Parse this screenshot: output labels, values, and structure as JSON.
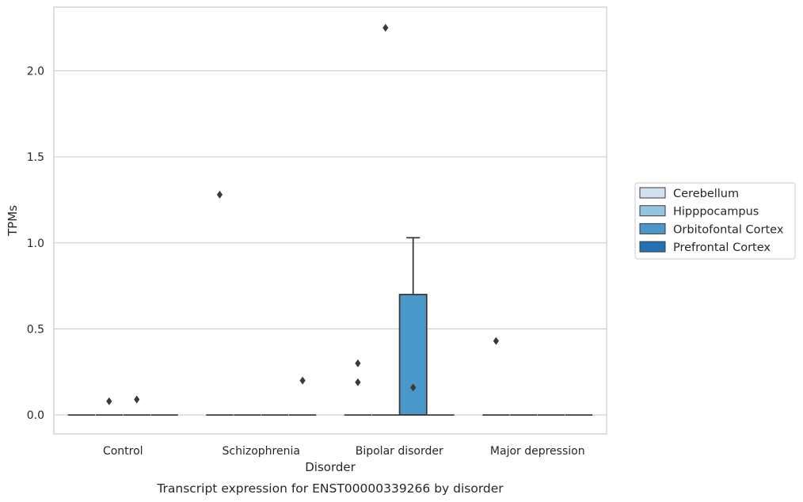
{
  "caption": "Transcript expression for ENST00000339266 by disorder",
  "chart_data": {
    "type": "box",
    "title": "",
    "xlabel": "Disorder",
    "ylabel": "TPMs",
    "ylim": [
      -0.11,
      2.37
    ],
    "yticks": [
      0.0,
      0.5,
      1.0,
      1.5,
      2.0
    ],
    "ytick_labels": [
      "0.0",
      "0.5",
      "1.0",
      "1.5",
      "2.0"
    ],
    "grid": "horizontal",
    "legend_position": "right",
    "categories": [
      "Control",
      "Schizophrenia",
      "Bipolar disorder",
      "Major depression"
    ],
    "series": [
      {
        "name": "Cerebellum",
        "color": "#d0e1f2",
        "boxes": [
          {
            "q1": 0,
            "median": 0,
            "q3": 0,
            "whislo": 0,
            "whishi": 0,
            "fliers": []
          },
          {
            "q1": 0,
            "median": 0,
            "q3": 0,
            "whislo": 0,
            "whishi": 0,
            "fliers": [
              1.28
            ]
          },
          {
            "q1": 0,
            "median": 0,
            "q3": 0,
            "whislo": 0,
            "whishi": 0,
            "fliers": [
              0.19,
              0.3
            ]
          },
          {
            "q1": 0,
            "median": 0,
            "q3": 0,
            "whislo": 0,
            "whishi": 0,
            "fliers": [
              0.43
            ]
          }
        ]
      },
      {
        "name": "Hipppocampus",
        "color": "#94c4df",
        "boxes": [
          {
            "q1": 0,
            "median": 0,
            "q3": 0,
            "whislo": 0,
            "whishi": 0,
            "fliers": [
              0.08
            ]
          },
          {
            "q1": 0,
            "median": 0,
            "q3": 0,
            "whislo": 0,
            "whishi": 0,
            "fliers": []
          },
          {
            "q1": 0,
            "median": 0,
            "q3": 0,
            "whislo": 0,
            "whishi": 0,
            "fliers": [
              2.25
            ]
          },
          {
            "q1": 0,
            "median": 0,
            "q3": 0,
            "whislo": 0,
            "whishi": 0,
            "fliers": []
          }
        ]
      },
      {
        "name": "Orbitofontal Cortex",
        "color": "#4a98c9",
        "boxes": [
          {
            "q1": 0,
            "median": 0,
            "q3": 0,
            "whislo": 0,
            "whishi": 0,
            "fliers": [
              0.09
            ]
          },
          {
            "q1": 0,
            "median": 0,
            "q3": 0,
            "whislo": 0,
            "whishi": 0,
            "fliers": []
          },
          {
            "q1": 0,
            "median": 0,
            "q3": 0.7,
            "whislo": 0,
            "whishi": 1.03,
            "fliers": [
              0.16
            ]
          },
          {
            "q1": 0,
            "median": 0,
            "q3": 0,
            "whislo": 0,
            "whishi": 0,
            "fliers": []
          }
        ]
      },
      {
        "name": "Prefrontal Cortex",
        "color": "#2271b5",
        "boxes": [
          {
            "q1": 0,
            "median": 0,
            "q3": 0,
            "whislo": 0,
            "whishi": 0,
            "fliers": []
          },
          {
            "q1": 0,
            "median": 0,
            "q3": 0,
            "whislo": 0,
            "whishi": 0,
            "fliers": [
              0.2
            ]
          },
          {
            "q1": 0,
            "median": 0,
            "q3": 0,
            "whislo": 0,
            "whishi": 0,
            "fliers": []
          },
          {
            "q1": 0,
            "median": 0,
            "q3": 0,
            "whislo": 0,
            "whishi": 0,
            "fliers": []
          }
        ]
      }
    ]
  }
}
